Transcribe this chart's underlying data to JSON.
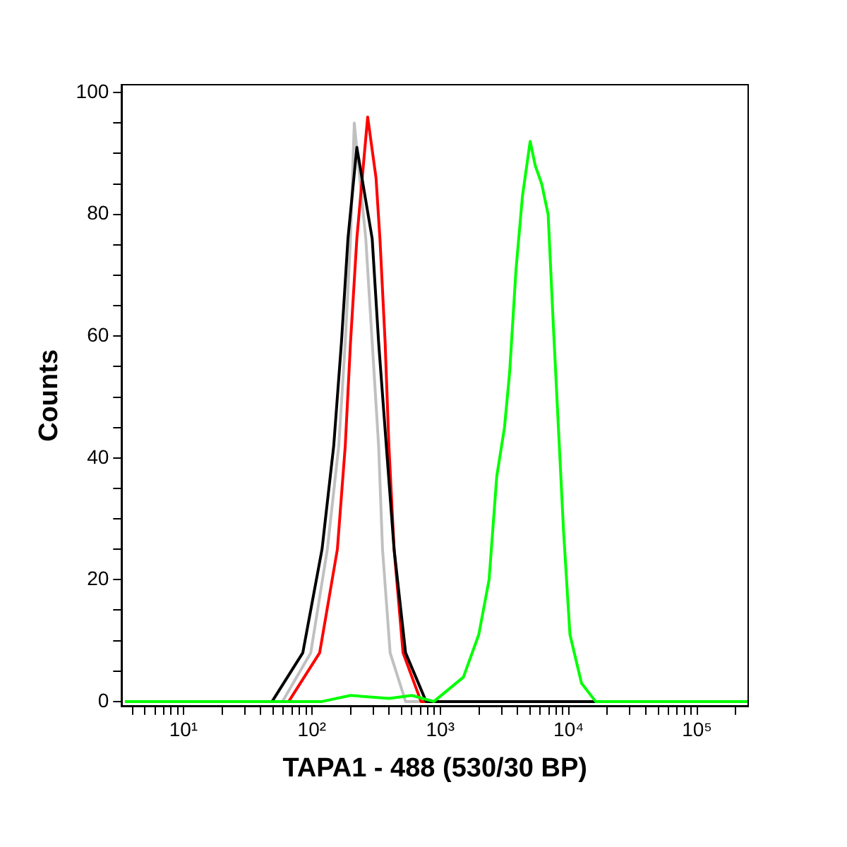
{
  "chart_data": {
    "type": "line",
    "xlabel": "TAPA1 - 488 (530/30 BP)",
    "ylabel": "Counts",
    "log": "x",
    "marker": "none",
    "line_style": "solid",
    "grid": false,
    "legend": false,
    "xlim": [
      3.3,
      250000
    ],
    "ylim": [
      -0.8,
      101.3
    ],
    "xticks": [
      {
        "value": 4,
        "label": null
      },
      {
        "value": 5,
        "label": null
      },
      {
        "value": 6,
        "label": null
      },
      {
        "value": 7,
        "label": null
      },
      {
        "value": 8,
        "label": null
      },
      {
        "value": 9,
        "label": null
      },
      {
        "value": 10,
        "label": "10¹"
      },
      {
        "value": 20,
        "label": null
      },
      {
        "value": 30,
        "label": null
      },
      {
        "value": 40,
        "label": null
      },
      {
        "value": 50,
        "label": null
      },
      {
        "value": 60,
        "label": null
      },
      {
        "value": 70,
        "label": null
      },
      {
        "value": 80,
        "label": null
      },
      {
        "value": 90,
        "label": null
      },
      {
        "value": 100,
        "label": "10²"
      },
      {
        "value": 200,
        "label": null
      },
      {
        "value": 300,
        "label": null
      },
      {
        "value": 400,
        "label": null
      },
      {
        "value": 500,
        "label": null
      },
      {
        "value": 600,
        "label": null
      },
      {
        "value": 700,
        "label": null
      },
      {
        "value": 800,
        "label": null
      },
      {
        "value": 900,
        "label": null
      },
      {
        "value": 1000,
        "label": "10³"
      },
      {
        "value": 2000,
        "label": null
      },
      {
        "value": 3000,
        "label": null
      },
      {
        "value": 4000,
        "label": null
      },
      {
        "value": 5000,
        "label": null
      },
      {
        "value": 6000,
        "label": null
      },
      {
        "value": 7000,
        "label": null
      },
      {
        "value": 8000,
        "label": null
      },
      {
        "value": 9000,
        "label": null
      },
      {
        "value": 10000,
        "label": "10⁴"
      },
      {
        "value": 20000,
        "label": null
      },
      {
        "value": 30000,
        "label": null
      },
      {
        "value": 40000,
        "label": null
      },
      {
        "value": 50000,
        "label": null
      },
      {
        "value": 60000,
        "label": null
      },
      {
        "value": 70000,
        "label": null
      },
      {
        "value": 80000,
        "label": null
      },
      {
        "value": 90000,
        "label": null
      },
      {
        "value": 100000,
        "label": "10⁵"
      },
      {
        "value": 200000,
        "label": null
      }
    ],
    "yticks": [
      0,
      {
        "value": 5,
        "label": null
      },
      {
        "value": 10,
        "label": null
      },
      {
        "value": 15,
        "label": null
      },
      20,
      {
        "value": 25,
        "label": null
      },
      {
        "value": 30,
        "label": null
      },
      {
        "value": 35,
        "label": null
      },
      40,
      {
        "value": 45,
        "label": null
      },
      {
        "value": 50,
        "label": null
      },
      {
        "value": 55,
        "label": null
      },
      60,
      {
        "value": 65,
        "label": null
      },
      {
        "value": 70,
        "label": null
      },
      {
        "value": 75,
        "label": null
      },
      80,
      {
        "value": 85,
        "label": null
      },
      {
        "value": 90,
        "label": null
      },
      {
        "value": 95,
        "label": null
      },
      100
    ],
    "series": [
      {
        "color": "#c0c0c0",
        "x": [
          3.5,
          59,
          98,
          132,
          162,
          182,
          200,
          214,
          263,
          295,
          331,
          355,
          407,
          537,
          250000
        ],
        "values": [
          0,
          0,
          8,
          25,
          42,
          59,
          76,
          95,
          76,
          59,
          42,
          25,
          8,
          0,
          0
        ]
      },
      {
        "color": "#ff0000",
        "x": [
          3.5,
          66,
          115,
          158,
          182,
          200,
          224,
          272,
          316,
          339,
          372,
          398,
          437,
          513,
          708,
          250000
        ],
        "values": [
          0,
          0,
          8,
          25,
          42,
          59,
          76,
          96,
          86,
          76,
          59,
          42,
          25,
          8,
          0,
          0
        ]
      },
      {
        "color": "#000000",
        "x": [
          3.5,
          49,
          85,
          120,
          148,
          170,
          191,
          224,
          295,
          331,
          380,
          437,
          537,
          776,
          250000
        ],
        "values": [
          0,
          0,
          8,
          25,
          42,
          59,
          76,
          91,
          76,
          59,
          42,
          25,
          8,
          0,
          0
        ]
      },
      {
        "color": "#00ff00",
        "x": [
          3.5,
          120,
          200,
          400,
          600,
          891,
          1514,
          1995,
          2399,
          2754,
          3162,
          3467,
          3890,
          4365,
          5012,
          5495,
          6166,
          6918,
          7586,
          8318,
          9120,
          10230,
          12590,
          16220,
          250000
        ],
        "values": [
          0,
          0,
          1,
          0.5,
          1,
          0,
          4,
          11,
          20,
          37,
          45,
          54,
          71,
          83,
          92,
          88,
          85,
          80,
          62,
          45,
          28,
          11,
          3,
          0,
          0
        ]
      }
    ]
  }
}
